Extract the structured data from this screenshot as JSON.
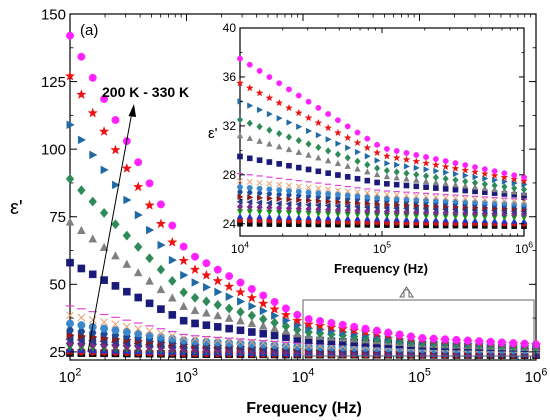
{
  "chart_data": [
    {
      "type": "scatter",
      "panel_label": "(a)",
      "xlabel": "Frequency (Hz)",
      "ylabel": "ε'",
      "xscale": "log",
      "xlim": [
        100,
        1000000
      ],
      "ylim": [
        22,
        150
      ],
      "x_ticks": [
        {
          "base": "10",
          "exp": "2"
        },
        {
          "base": "10",
          "exp": "3"
        },
        {
          "base": "10",
          "exp": "4"
        },
        {
          "base": "10",
          "exp": "5"
        },
        {
          "base": "10",
          "exp": "6"
        }
      ],
      "y_ticks": [
        "25",
        "50",
        "75",
        "100",
        "125",
        "150"
      ],
      "annotation": "200 K - 330 K",
      "x": [
        100,
        1000,
        10000,
        100000,
        1000000
      ],
      "series": [
        {
          "color": "#0a0a0a",
          "marker": "square",
          "values": [
            24.6,
            24.2,
            24.0,
            23.9,
            23.8
          ]
        },
        {
          "color": "#cc1111",
          "marker": "circle",
          "values": [
            25.2,
            24.6,
            24.3,
            24.1,
            24.0
          ]
        },
        {
          "color": "#2233cc",
          "marker": "triangle-up",
          "values": [
            26.0,
            25.1,
            24.6,
            24.4,
            24.2
          ]
        },
        {
          "color": "#119911",
          "marker": "triangle-down",
          "values": [
            27.0,
            25.7,
            25.0,
            24.7,
            24.5
          ]
        },
        {
          "color": "#7a2a8a",
          "marker": "diamond",
          "values": [
            28.2,
            26.4,
            25.4,
            25.0,
            24.8
          ]
        },
        {
          "color": "#2a3a8a",
          "marker": "triangle-left",
          "values": [
            29.6,
            27.0,
            25.8,
            25.3,
            25.0
          ]
        },
        {
          "color": "#8a1a1a",
          "marker": "triangle-right",
          "values": [
            31.2,
            27.7,
            26.2,
            25.6,
            25.2
          ]
        },
        {
          "color": "#1a4a9a",
          "marker": "hexagon",
          "values": [
            33.0,
            28.4,
            26.6,
            25.9,
            25.4
          ]
        },
        {
          "color": "#3a88cc",
          "marker": "circle",
          "values": [
            35.5,
            29.1,
            27.0,
            26.1,
            25.6
          ]
        },
        {
          "color": "#e8a070",
          "marker": "x",
          "values": [
            38.5,
            30.0,
            27.5,
            26.4,
            25.8
          ]
        },
        {
          "color": "#dd44dd",
          "marker": "dash",
          "values": [
            42.0,
            31.2,
            28.1,
            26.7,
            26.0
          ]
        },
        {
          "color": "#1a1a7a",
          "marker": "square",
          "values": [
            58.0,
            36.0,
            29.5,
            27.3,
            26.3
          ]
        },
        {
          "color": "#808080",
          "marker": "triangle-up",
          "values": [
            73.0,
            41.0,
            31.2,
            27.9,
            26.5
          ]
        },
        {
          "color": "#2e8b57",
          "marker": "diamond",
          "values": [
            89.0,
            46.0,
            32.5,
            28.4,
            26.8
          ]
        },
        {
          "color": "#1f6aa5",
          "marker": "triangle-right",
          "values": [
            109.0,
            52.0,
            34.0,
            29.0,
            27.2
          ]
        },
        {
          "color": "#ee1111",
          "marker": "star",
          "values": [
            127.0,
            57.0,
            35.5,
            29.6,
            27.5
          ]
        },
        {
          "color": "#ff22ff",
          "marker": "circle",
          "values": [
            142.0,
            62.0,
            37.5,
            30.2,
            27.8
          ]
        }
      ]
    },
    {
      "type": "scatter",
      "role": "inset",
      "xlabel": "Frequency (Hz)",
      "ylabel": "ε'",
      "xscale": "log",
      "xlim": [
        10000,
        1000000
      ],
      "ylim": [
        23,
        40
      ],
      "x_ticks": [
        {
          "base": "10",
          "exp": "4"
        },
        {
          "base": "10",
          "exp": "5"
        },
        {
          "base": "10",
          "exp": "6"
        }
      ],
      "y_ticks": [
        "24",
        "28",
        "32",
        "36",
        "40"
      ]
    }
  ]
}
